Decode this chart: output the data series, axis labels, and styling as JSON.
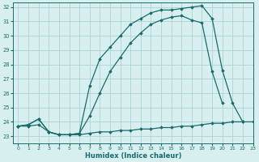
{
  "title": "",
  "xlabel": "Humidex (Indice chaleur)",
  "background_color": "#d8efef",
  "grid_color": "#aed4d4",
  "line_color": "#1a6b6b",
  "x_min": 0,
  "x_max": 23,
  "y_min": 23,
  "y_max": 32,
  "x_ticks": [
    0,
    1,
    2,
    3,
    4,
    5,
    6,
    7,
    8,
    9,
    10,
    11,
    12,
    13,
    14,
    15,
    16,
    17,
    18,
    19,
    20,
    21,
    22,
    23
  ],
  "y_ticks": [
    23,
    24,
    25,
    26,
    27,
    28,
    29,
    30,
    31,
    32
  ],
  "line1_x": [
    0,
    1,
    2,
    3,
    4,
    5,
    6,
    7,
    8,
    9,
    10,
    11,
    12,
    13,
    14,
    15,
    16,
    17,
    18,
    19,
    20,
    21,
    22,
    23
  ],
  "line1_y": [
    23.7,
    23.7,
    23.8,
    23.3,
    23.1,
    23.1,
    23.1,
    23.2,
    23.3,
    23.3,
    23.4,
    23.4,
    23.5,
    23.5,
    23.6,
    23.6,
    23.7,
    23.7,
    23.8,
    23.9,
    23.9,
    24.0,
    24.0,
    24.0
  ],
  "line2_x": [
    0,
    1,
    2,
    3,
    4,
    5,
    6,
    7,
    8,
    9,
    10,
    11,
    12,
    13,
    14,
    15,
    16,
    17,
    18,
    19,
    20
  ],
  "line2_y": [
    23.7,
    23.8,
    24.2,
    23.3,
    23.1,
    23.1,
    23.2,
    24.4,
    26.0,
    27.5,
    28.5,
    29.5,
    30.2,
    30.8,
    31.1,
    31.3,
    31.4,
    31.1,
    30.9,
    27.5,
    25.3
  ],
  "line3_x": [
    0,
    1,
    2,
    3,
    4,
    5,
    6,
    7,
    8,
    9,
    10,
    11,
    12,
    13,
    14,
    15,
    16,
    17,
    18,
    19,
    20,
    21,
    22
  ],
  "line3_y": [
    23.7,
    23.8,
    24.2,
    23.3,
    23.1,
    23.1,
    23.2,
    26.5,
    28.4,
    29.2,
    30.0,
    30.8,
    31.2,
    31.6,
    31.8,
    31.8,
    31.9,
    32.0,
    32.1,
    31.2,
    27.6,
    25.3,
    24.0
  ]
}
